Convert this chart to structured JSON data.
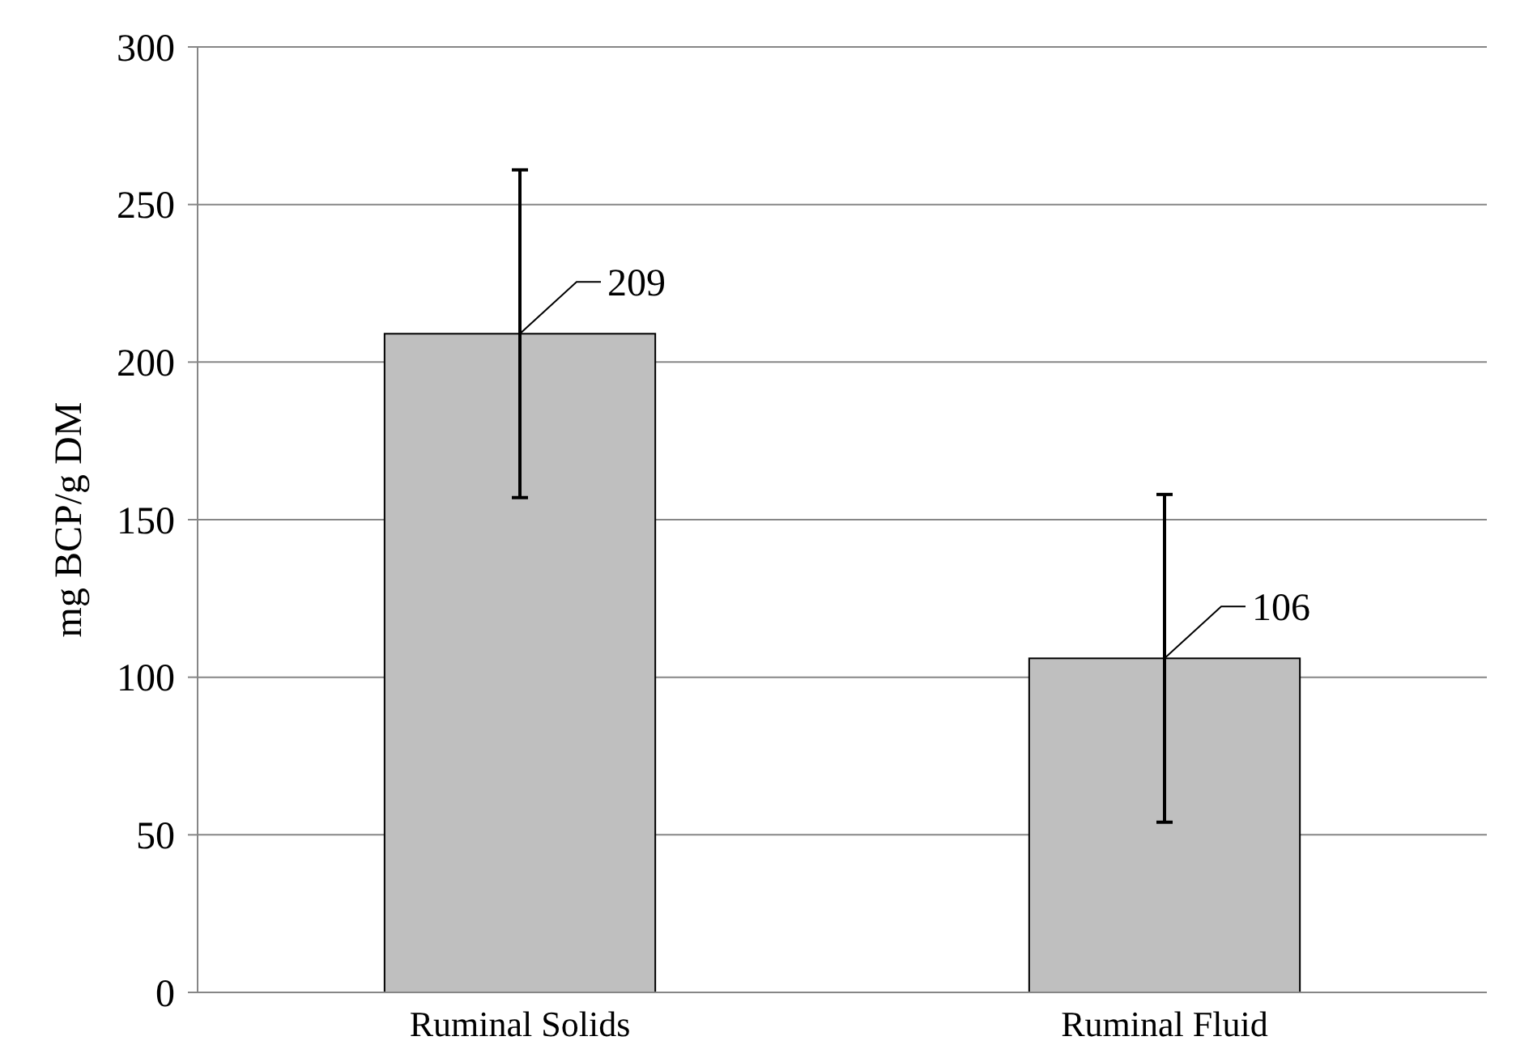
{
  "chart_data": {
    "type": "bar",
    "ylabel": "mg BCP/g DM",
    "categories": [
      "Ruminal Solids",
      "Ruminal Fluid"
    ],
    "values": [
      209,
      106
    ],
    "color": "#bfbfbf",
    "errors": [
      52,
      52
    ],
    "data_labels": true,
    "ylim": [
      0,
      300
    ],
    "yticks": [
      0,
      50,
      100,
      150,
      200,
      250,
      300
    ],
    "grid": "y"
  }
}
